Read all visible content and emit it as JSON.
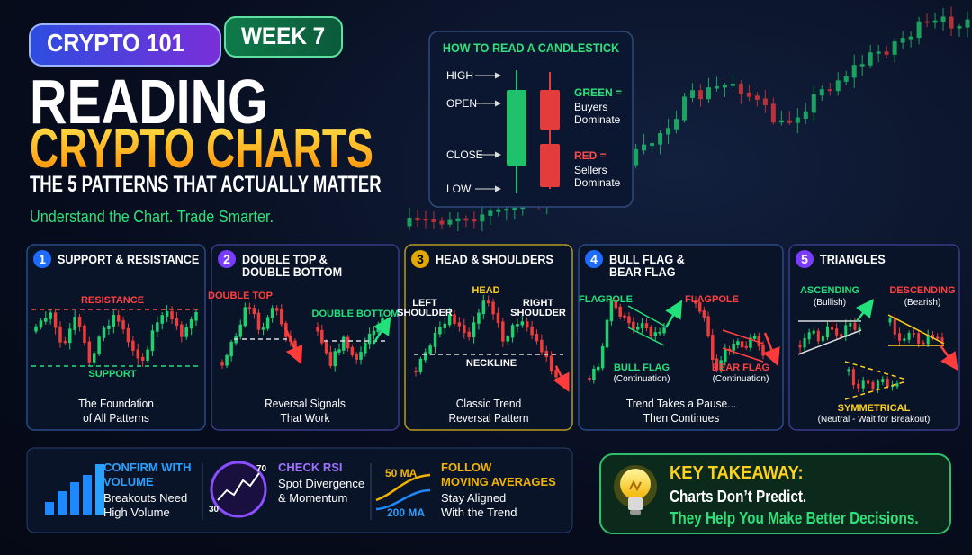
{
  "header": {
    "badge": "CRYPTO 101",
    "week": "WEEK 7",
    "title_line1": "READING",
    "title_line2": "CRYPTO CHARTS",
    "subtitle": "THE 5 PATTERNS THAT ACTUALLY MATTER",
    "tagline": "Understand the Chart. Trade Smarter."
  },
  "candlestick_guide": {
    "title": "HOW TO READ A CANDLESTICK",
    "labels": [
      "HIGH",
      "OPEN",
      "CLOSE",
      "LOW"
    ],
    "green": {
      "title": "GREEN =",
      "text": [
        "Buyers",
        "Dominate"
      ]
    },
    "red": {
      "title": "RED =",
      "text": [
        "Sellers",
        "Dominate"
      ]
    }
  },
  "patterns": [
    {
      "number": "1",
      "title": [
        "SUPPORT & RESISTANCE"
      ],
      "chart_labels": [
        "RESISTANCE",
        "SUPPORT"
      ],
      "caption": [
        "The Foundation",
        "of All Patterns"
      ]
    },
    {
      "number": "2",
      "title": [
        "DOUBLE TOP &",
        "DOUBLE BOTTOM"
      ],
      "chart_labels": [
        "DOUBLE TOP",
        "DOUBLE BOTTOM"
      ],
      "caption": [
        "Reversal Signals",
        "That Work"
      ]
    },
    {
      "number": "3",
      "title": [
        "HEAD & SHOULDERS"
      ],
      "chart_labels": [
        "HEAD",
        "LEFT",
        "SHOULDER",
        "RIGHT",
        "SHOULDER",
        "NECKLINE"
      ],
      "caption": [
        "Classic Trend",
        "Reversal Pattern"
      ]
    },
    {
      "number": "4",
      "title": [
        "BULL FLAG &",
        "BEAR FLAG"
      ],
      "chart_labels": [
        "FLAGPOLE",
        "FLAGPOLE",
        "BULL FLAG",
        "(Continuation)",
        "BEAR FLAG",
        "(Continuation)"
      ],
      "caption": [
        "Trend Takes a Pause...",
        "Then Continues"
      ]
    },
    {
      "number": "5",
      "title": [
        "TRIANGLES"
      ],
      "chart_labels": [
        "ASCENDING",
        "(Bullish)",
        "DESCENDING",
        "(Bearish)",
        "SYMMETRICAL",
        "(Neutral - Wait for Breakout)"
      ]
    }
  ],
  "tips": [
    {
      "title": [
        "CONFIRM WITH",
        "VOLUME"
      ],
      "text": [
        "Breakouts Need",
        "High Volume"
      ]
    },
    {
      "title": [
        "CHECK RSI"
      ],
      "text": [
        "Spot Divergence",
        "& Momentum"
      ],
      "chart_labels": [
        "70",
        "30"
      ]
    },
    {
      "title": [
        "FOLLOW",
        "MOVING AVERAGES"
      ],
      "text": [
        "Stay Aligned",
        "With the Trend"
      ],
      "chart_labels": [
        "50 MA",
        "200 MA"
      ]
    }
  ],
  "takeaway": {
    "title": "KEY TAKEAWAY:",
    "line1": "Charts Don’t Predict.",
    "line2": "They Help You Make Better Decisions."
  }
}
